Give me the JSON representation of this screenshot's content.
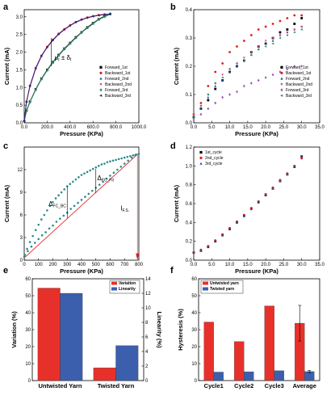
{
  "chart_data": [
    {
      "panel": "a",
      "type": "line",
      "xlabel": "Pressure (KPa)",
      "ylabel": "Current (mA)",
      "xlim": [
        0,
        1000
      ],
      "ylim": [
        0,
        3.2
      ],
      "xticks": [
        0,
        200,
        400,
        600,
        800,
        1000
      ],
      "yticks": [
        0.0,
        0.5,
        1.0,
        1.5,
        2.0,
        2.5,
        3.0
      ],
      "annotation": "μ_I ± δ_I",
      "legend_position": "right",
      "series": [
        {
          "name": "Forward_1st",
          "color": "#000000",
          "marker": "square",
          "x": [
            0,
            20,
            50,
            100,
            150,
            200,
            250,
            300,
            350,
            400,
            450,
            500,
            550,
            600,
            650,
            700,
            750
          ],
          "y": [
            0.05,
            0.35,
            0.6,
            0.95,
            1.25,
            1.5,
            1.72,
            1.92,
            2.1,
            2.26,
            2.42,
            2.56,
            2.7,
            2.82,
            2.93,
            3.02,
            3.08
          ]
        },
        {
          "name": "Backward_1st",
          "color": "#e31a1c",
          "marker": "circle",
          "x": [
            0,
            20,
            50,
            100,
            150,
            200,
            250,
            300,
            350,
            400,
            450,
            500,
            550,
            600,
            650,
            700,
            750
          ],
          "y": [
            0.05,
            0.6,
            1.05,
            1.55,
            1.9,
            2.15,
            2.35,
            2.52,
            2.65,
            2.76,
            2.85,
            2.92,
            2.98,
            3.02,
            3.05,
            3.07,
            3.08
          ]
        },
        {
          "name": "Forward_2nd",
          "color": "#1f4e9c",
          "marker": "triangle-up",
          "x": [
            0,
            20,
            50,
            100,
            150,
            200,
            250,
            300,
            350,
            400,
            450,
            500,
            550,
            600,
            650,
            700,
            750
          ],
          "y": [
            0.05,
            0.33,
            0.58,
            0.93,
            1.23,
            1.48,
            1.7,
            1.9,
            2.08,
            2.24,
            2.4,
            2.55,
            2.68,
            2.8,
            2.92,
            3.0,
            3.07
          ]
        },
        {
          "name": "Backward_2nd",
          "color": "#d6449a",
          "marker": "triangle-down",
          "x": [
            0,
            20,
            50,
            100,
            150,
            200,
            250,
            300,
            350,
            400,
            450,
            500,
            550,
            600,
            650,
            700,
            750
          ],
          "y": [
            0.05,
            0.58,
            1.02,
            1.52,
            1.88,
            2.13,
            2.33,
            2.5,
            2.63,
            2.75,
            2.84,
            2.91,
            2.97,
            3.01,
            3.04,
            3.06,
            3.07
          ]
        },
        {
          "name": "Forward_3rd",
          "color": "#2e8b57",
          "marker": "diamond",
          "x": [
            0,
            20,
            50,
            100,
            150,
            200,
            250,
            300,
            350,
            400,
            450,
            500,
            550,
            600,
            650,
            700,
            750
          ],
          "y": [
            0.05,
            0.34,
            0.59,
            0.94,
            1.24,
            1.49,
            1.71,
            1.91,
            2.09,
            2.25,
            2.41,
            2.55,
            2.69,
            2.81,
            2.92,
            3.01,
            3.08
          ]
        },
        {
          "name": "Backward_3rd",
          "color": "#1a237e",
          "marker": "triangle-left",
          "x": [
            0,
            20,
            50,
            100,
            150,
            200,
            250,
            300,
            350,
            400,
            450,
            500,
            550,
            600,
            650,
            700,
            750
          ],
          "y": [
            0.05,
            0.59,
            1.04,
            1.54,
            1.89,
            2.14,
            2.34,
            2.51,
            2.64,
            2.75,
            2.85,
            2.92,
            2.97,
            3.01,
            3.04,
            3.06,
            3.08
          ]
        }
      ]
    },
    {
      "panel": "b",
      "type": "scatter",
      "xlabel": "Pressure (KPa)",
      "ylabel": "Current (mA)",
      "xlim": [
        0,
        35
      ],
      "ylim": [
        0,
        0.4
      ],
      "xticks": [
        0,
        5,
        10,
        15,
        20,
        25,
        30,
        35
      ],
      "yticks": [
        0.0,
        0.1,
        0.2,
        0.3,
        0.4
      ],
      "legend_position": "right",
      "series": [
        {
          "name": "Forward_1st",
          "color": "#000000",
          "marker": "square",
          "x": [
            0,
            2,
            4,
            6,
            8,
            10,
            12,
            14,
            16,
            18,
            20,
            22,
            24,
            26,
            28,
            30
          ],
          "y": [
            0.02,
            0.05,
            0.08,
            0.12,
            0.15,
            0.18,
            0.2,
            0.22,
            0.25,
            0.27,
            0.28,
            0.3,
            0.32,
            0.33,
            0.35,
            0.37
          ]
        },
        {
          "name": "Backward_1st",
          "color": "#e31a1c",
          "marker": "circle",
          "x": [
            0,
            2,
            4,
            6,
            8,
            10,
            12,
            14,
            16,
            18,
            20,
            22,
            24,
            26,
            28,
            30
          ],
          "y": [
            0.03,
            0.07,
            0.13,
            0.18,
            0.21,
            0.25,
            0.27,
            0.29,
            0.31,
            0.33,
            0.34,
            0.35,
            0.36,
            0.37,
            0.38,
            0.38
          ]
        },
        {
          "name": "Forward_2nd",
          "color": "#1f4e9c",
          "marker": "triangle-up",
          "x": [
            0,
            2,
            4,
            6,
            8,
            10,
            12,
            14,
            16,
            18,
            20,
            22,
            24,
            26,
            28,
            30
          ],
          "y": [
            0.02,
            0.05,
            0.09,
            0.13,
            0.15,
            0.18,
            0.2,
            0.22,
            0.24,
            0.26,
            0.28,
            0.29,
            0.31,
            0.32,
            0.33,
            0.34
          ]
        },
        {
          "name": "Backward_2nd",
          "color": "#d6449a",
          "marker": "triangle-down",
          "x": [
            0,
            2,
            4,
            6,
            8,
            10,
            12,
            14,
            16,
            18,
            20,
            22,
            24,
            26,
            28,
            30
          ],
          "y": [
            0.03,
            0.06,
            0.1,
            0.14,
            0.17,
            0.19,
            0.21,
            0.23,
            0.25,
            0.27,
            0.29,
            0.3,
            0.31,
            0.32,
            0.33,
            0.34
          ]
        },
        {
          "name": "Forward_3rd",
          "color": "#9b59b6",
          "marker": "diamond",
          "x": [
            0,
            2,
            4,
            6,
            8,
            10,
            12,
            14,
            16,
            18,
            20,
            22,
            24,
            26,
            28,
            30
          ],
          "y": [
            0.01,
            0.03,
            0.05,
            0.07,
            0.09,
            0.1,
            0.11,
            0.13,
            0.14,
            0.15,
            0.16,
            0.17,
            0.18,
            0.19,
            0.2,
            0.2
          ]
        },
        {
          "name": "Backward_3rd",
          "color": "#2e8b57",
          "marker": "triangle-left",
          "x": [
            0,
            2,
            4,
            6,
            8,
            10,
            12,
            14,
            16,
            18,
            20,
            22,
            24,
            26,
            28,
            30
          ],
          "y": [
            0.02,
            0.06,
            0.1,
            0.14,
            0.16,
            0.19,
            0.21,
            0.22,
            0.24,
            0.26,
            0.27,
            0.28,
            0.3,
            0.31,
            0.32,
            0.33
          ]
        }
      ]
    },
    {
      "panel": "c",
      "type": "scatter",
      "xlabel": "Pressure (KPa)",
      "ylabel": "Current (mA)",
      "xlim": [
        0,
        800
      ],
      "ylim": [
        0,
        15
      ],
      "xticks": [
        0,
        100,
        200,
        300,
        400,
        500,
        600,
        700,
        800
      ],
      "yticks": [
        0,
        3,
        6,
        9,
        12
      ],
      "annotations": [
        "Δ_FC_BC",
        "Δ_FC_Fit",
        "I_F.S."
      ],
      "fit_line": {
        "x": [
          0,
          800
        ],
        "y": [
          0.3,
          14.2
        ]
      },
      "series": [
        {
          "name": "data",
          "color": "#2a8c8c",
          "marker": "circle",
          "x": [
            0,
            25,
            50,
            75,
            100,
            125,
            150,
            175,
            200,
            225,
            250,
            275,
            300,
            325,
            350,
            375,
            400,
            425,
            450,
            475,
            500,
            525,
            550,
            575,
            600,
            625,
            650,
            675,
            700,
            725,
            750,
            775,
            800,
            780,
            760,
            740,
            720,
            700,
            680,
            660,
            640,
            620,
            600,
            580,
            560,
            540,
            520,
            500,
            480,
            460,
            440,
            420,
            400,
            380,
            360,
            340,
            320,
            300,
            280,
            260,
            240,
            220,
            200,
            180,
            160,
            140,
            120,
            100,
            80,
            60,
            40,
            20,
            5
          ],
          "y": [
            0.5,
            1.2,
            1.8,
            2.3,
            2.8,
            3.3,
            3.7,
            4.2,
            4.6,
            5.1,
            5.5,
            5.9,
            6.3,
            6.8,
            7.2,
            7.6,
            8.0,
            8.4,
            8.8,
            9.2,
            9.6,
            10.0,
            10.4,
            10.8,
            11.2,
            11.6,
            12.0,
            12.4,
            12.8,
            13.2,
            13.6,
            13.9,
            14.1,
            14.0,
            13.9,
            13.8,
            13.7,
            13.6,
            13.5,
            13.4,
            13.3,
            13.2,
            13.1,
            13.0,
            12.8,
            12.7,
            12.5,
            12.3,
            12.1,
            11.9,
            11.7,
            11.5,
            11.3,
            11.0,
            10.7,
            10.4,
            10.1,
            9.8,
            9.4,
            9.0,
            8.6,
            8.2,
            7.7,
            7.2,
            6.6,
            6.0,
            5.4,
            4.7,
            4.0,
            3.2,
            2.4,
            1.5,
            0.7
          ]
        }
      ]
    },
    {
      "panel": "d",
      "type": "scatter",
      "xlabel": "Pressure (KPa)",
      "ylabel": "Current (mA)",
      "xlim": [
        0,
        35
      ],
      "ylim": [
        0,
        1.2
      ],
      "xticks": [
        0,
        5,
        10,
        15,
        20,
        25,
        30,
        35
      ],
      "yticks": [
        0.0,
        0.2,
        0.4,
        0.6,
        0.8,
        1.0,
        1.2
      ],
      "legend_position": "top-left",
      "series": [
        {
          "name": "1st_cycle",
          "color": "#000000",
          "marker": "square",
          "x": [
            0,
            2,
            4,
            6,
            8,
            10,
            12,
            14,
            16,
            18,
            20,
            22,
            24,
            26,
            28,
            30
          ],
          "y": [
            0.08,
            0.1,
            0.14,
            0.2,
            0.27,
            0.33,
            0.4,
            0.47,
            0.55,
            0.62,
            0.69,
            0.76,
            0.84,
            0.91,
            0.99,
            1.1
          ]
        },
        {
          "name": "2nd_cycle",
          "color": "#e31a1c",
          "marker": "circle",
          "x": [
            0,
            2,
            4,
            6,
            8,
            10,
            12,
            14,
            16,
            18,
            20,
            22,
            24,
            26,
            28,
            30
          ],
          "y": [
            0.08,
            0.11,
            0.15,
            0.21,
            0.27,
            0.34,
            0.41,
            0.48,
            0.55,
            0.62,
            0.7,
            0.77,
            0.85,
            0.92,
            1.0,
            1.08
          ]
        },
        {
          "name": "3rd_cycle",
          "color": "#1f4e9c",
          "marker": "triangle-up",
          "x": [
            0,
            2,
            4,
            6,
            8,
            10,
            12,
            14,
            16,
            18,
            20,
            22,
            24,
            26,
            28,
            30
          ],
          "y": [
            0.08,
            0.1,
            0.14,
            0.2,
            0.26,
            0.33,
            0.4,
            0.47,
            0.54,
            0.61,
            0.69,
            0.76,
            0.84,
            0.91,
            0.99,
            1.1
          ]
        }
      ]
    },
    {
      "panel": "e",
      "type": "bar",
      "categories": [
        "Untwisted Yarn",
        "Twisted Yarn"
      ],
      "ylabel": "Variation (%)",
      "y2label": "Linearity (%)",
      "ylim": [
        0,
        60
      ],
      "y2lim": [
        0,
        14
      ],
      "yticks": [
        0,
        10,
        20,
        30,
        40,
        50,
        60
      ],
      "y2ticks": [
        0,
        2,
        4,
        6,
        8,
        10,
        12,
        14
      ],
      "legend_position": "top-right",
      "series": [
        {
          "name": "Variation",
          "color": "#e8302a",
          "axis": "left",
          "values": [
            54.5,
            7.5
          ]
        },
        {
          "name": "Linearity",
          "color": "#3c5fad",
          "axis": "right",
          "values": [
            12.0,
            4.8
          ]
        }
      ]
    },
    {
      "panel": "f",
      "type": "bar",
      "categories": [
        "Cycle1",
        "Cycle2",
        "Cycle3",
        "Average"
      ],
      "ylabel": "Hysteresis (%)",
      "ylim": [
        0,
        60
      ],
      "yticks": [
        0,
        10,
        20,
        30,
        40,
        50,
        60
      ],
      "legend_position": "top-left",
      "series": [
        {
          "name": "Untwisted yarn",
          "color": "#e8302a",
          "values": [
            34.5,
            23,
            44,
            33.8
          ],
          "errors": [
            0,
            0,
            0,
            10.5
          ]
        },
        {
          "name": "Twisted yarn",
          "color": "#3c5fad",
          "values": [
            5,
            5.2,
            5.8,
            5.3
          ],
          "errors": [
            0,
            0,
            0,
            0.6
          ]
        }
      ]
    }
  ]
}
